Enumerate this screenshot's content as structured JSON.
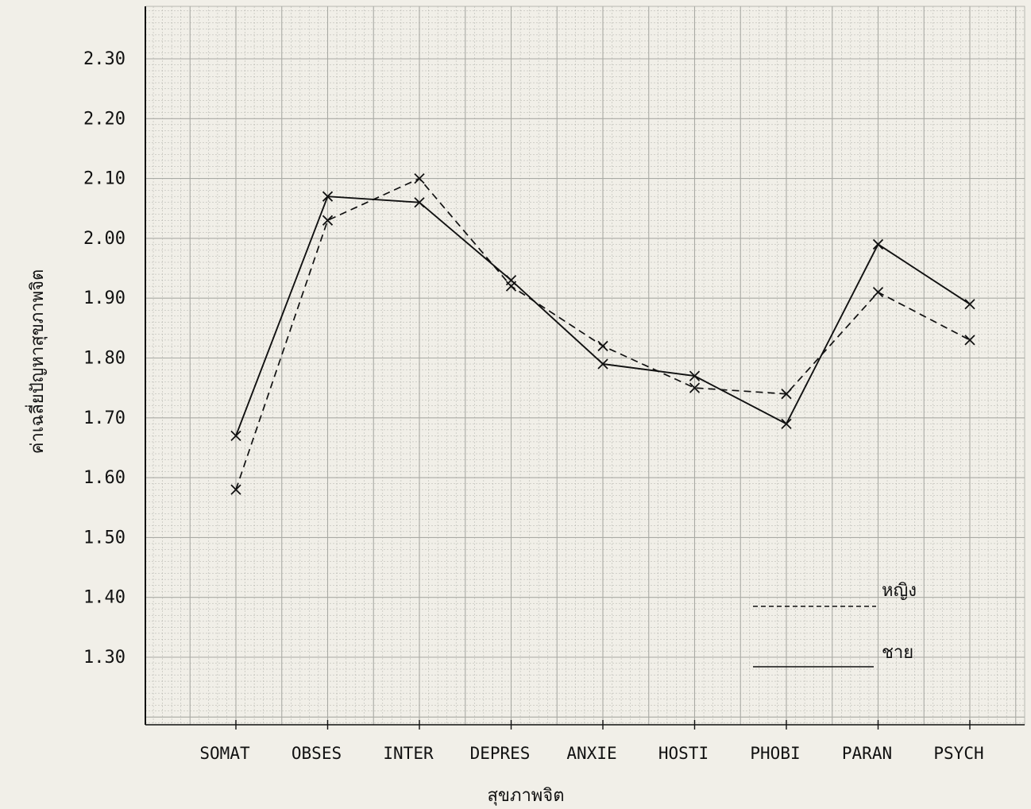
{
  "chart_data": {
    "type": "line",
    "title": "",
    "xlabel": "สุขภาพจิต",
    "ylabel": "ค่าเฉลี่ยปัญหาสุขภาพจิต",
    "categories": [
      "SOMAT",
      "OBSES",
      "INTER",
      "DEPRES",
      "ANXIE",
      "HOSTI",
      "PHOBI",
      "PARAN",
      "PSYCH"
    ],
    "y_ticks": [
      "2.30",
      "2.20",
      "2.10",
      "2.00",
      "1.90",
      "1.80",
      "1.70",
      "1.60",
      "1.50",
      "1.40",
      "1.30"
    ],
    "ylim": [
      1.2,
      2.37
    ],
    "grid": true,
    "legend_position": "bottom-right",
    "series": [
      {
        "name": "หญิง",
        "line_style": "dashed",
        "values": [
          1.58,
          2.03,
          2.1,
          1.92,
          1.82,
          1.75,
          1.74,
          1.91,
          1.83
        ]
      },
      {
        "name": "ชาย",
        "line_style": "solid",
        "values": [
          1.67,
          2.07,
          2.06,
          1.93,
          1.79,
          1.77,
          1.69,
          1.99,
          1.89
        ]
      }
    ],
    "colors": {
      "paper": "#f1efe8",
      "grid": "#a9aaa4",
      "ink": "#111111"
    }
  }
}
